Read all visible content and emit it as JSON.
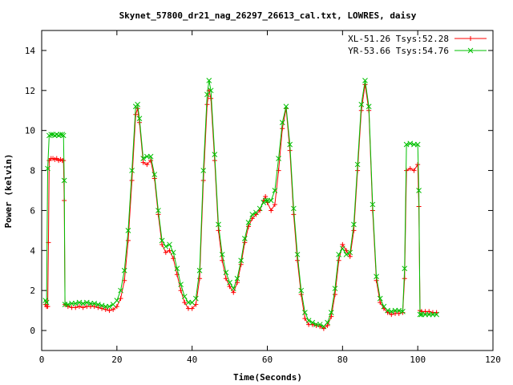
{
  "chart_data": {
    "type": "line",
    "title": "Skynet_57800_dr21_nag_26297_26613_cal.txt, LOWRES, daisy",
    "xlabel": "Time(Seconds)",
    "ylabel": "Power (kelvin)",
    "xlim": [
      0,
      120
    ],
    "ylim": [
      -1,
      15
    ],
    "xticks": [
      0,
      20,
      40,
      60,
      80,
      100,
      120
    ],
    "yticks": [
      0,
      2,
      4,
      6,
      8,
      10,
      12,
      14
    ],
    "legend_position": "top-right",
    "series": [
      {
        "name": "XL-51.26 Tsys:52.28",
        "color": "#ff0000",
        "marker": "plus",
        "points": [
          [
            1.0,
            1.3
          ],
          [
            1.3,
            1.2
          ],
          [
            1.6,
            1.2
          ],
          [
            1.8,
            4.4
          ],
          [
            2.0,
            8.5
          ],
          [
            2.5,
            8.6
          ],
          [
            3,
            8.6
          ],
          [
            3.5,
            8.55
          ],
          [
            4,
            8.6
          ],
          [
            4.5,
            8.5
          ],
          [
            5,
            8.55
          ],
          [
            5.5,
            8.5
          ],
          [
            5.8,
            8.5
          ],
          [
            6.0,
            6.5
          ],
          [
            6.2,
            1.3
          ],
          [
            7,
            1.2
          ],
          [
            8,
            1.15
          ],
          [
            9,
            1.15
          ],
          [
            10,
            1.2
          ],
          [
            11,
            1.15
          ],
          [
            12,
            1.2
          ],
          [
            13,
            1.2
          ],
          [
            14,
            1.2
          ],
          [
            15,
            1.15
          ],
          [
            16,
            1.1
          ],
          [
            17,
            1.05
          ],
          [
            18,
            1.0
          ],
          [
            19,
            1.05
          ],
          [
            20,
            1.2
          ],
          [
            21,
            1.6
          ],
          [
            22,
            2.5
          ],
          [
            23,
            4.5
          ],
          [
            24,
            7.5
          ],
          [
            25,
            10.8
          ],
          [
            25.5,
            11.1
          ],
          [
            26,
            10.4
          ],
          [
            27,
            8.4
          ],
          [
            28,
            8.3
          ],
          [
            29,
            8.5
          ],
          [
            30,
            7.6
          ],
          [
            31,
            5.8
          ],
          [
            32,
            4.3
          ],
          [
            33,
            3.9
          ],
          [
            34,
            4.0
          ],
          [
            35,
            3.6
          ],
          [
            36,
            2.8
          ],
          [
            37,
            2.0
          ],
          [
            38,
            1.4
          ],
          [
            39,
            1.1
          ],
          [
            40,
            1.1
          ],
          [
            41,
            1.3
          ],
          [
            42,
            2.6
          ],
          [
            43,
            7.5
          ],
          [
            44,
            11.3
          ],
          [
            44.5,
            12.0
          ],
          [
            45,
            11.6
          ],
          [
            46,
            8.5
          ],
          [
            47,
            5.0
          ],
          [
            48,
            3.5
          ],
          [
            49,
            2.6
          ],
          [
            50,
            2.2
          ],
          [
            51,
            1.9
          ],
          [
            52,
            2.4
          ],
          [
            53,
            3.3
          ],
          [
            54,
            4.4
          ],
          [
            55,
            5.2
          ],
          [
            56,
            5.6
          ],
          [
            57,
            5.8
          ],
          [
            58,
            6.0
          ],
          [
            59,
            6.5
          ],
          [
            59.5,
            6.7
          ],
          [
            60,
            6.4
          ],
          [
            61,
            6.0
          ],
          [
            62,
            6.3
          ],
          [
            63,
            8.0
          ],
          [
            64,
            10.1
          ],
          [
            65,
            11.1
          ],
          [
            66,
            9.0
          ],
          [
            67,
            5.8
          ],
          [
            68,
            3.5
          ],
          [
            69,
            1.8
          ],
          [
            70,
            0.6
          ],
          [
            71,
            0.3
          ],
          [
            72,
            0.3
          ],
          [
            73,
            0.25
          ],
          [
            74,
            0.2
          ],
          [
            75,
            0.1
          ],
          [
            76,
            0.25
          ],
          [
            77,
            0.7
          ],
          [
            78,
            1.8
          ],
          [
            79,
            3.5
          ],
          [
            80,
            4.3
          ],
          [
            81,
            4.0
          ],
          [
            82,
            3.7
          ],
          [
            83,
            5.0
          ],
          [
            84,
            8.0
          ],
          [
            85,
            11.0
          ],
          [
            86,
            12.3
          ],
          [
            87,
            11.0
          ],
          [
            88,
            6.0
          ],
          [
            89,
            2.5
          ],
          [
            90,
            1.4
          ],
          [
            91,
            1.1
          ],
          [
            92,
            0.9
          ],
          [
            93,
            0.8
          ],
          [
            94,
            0.85
          ],
          [
            95,
            0.85
          ],
          [
            96,
            0.9
          ],
          [
            96.5,
            2.6
          ],
          [
            97,
            8.0
          ],
          [
            98,
            8.1
          ],
          [
            99,
            8.0
          ],
          [
            100,
            8.3
          ],
          [
            100.3,
            6.2
          ],
          [
            100.6,
            1.0
          ],
          [
            101,
            0.95
          ],
          [
            102,
            0.95
          ],
          [
            103,
            0.95
          ],
          [
            104,
            0.9
          ],
          [
            105,
            0.9
          ]
        ]
      },
      {
        "name": "YR-53.66 Tsys:54.76",
        "color": "#00c000",
        "marker": "cross",
        "points": [
          [
            1.0,
            1.5
          ],
          [
            1.3,
            1.4
          ],
          [
            1.6,
            8.1
          ],
          [
            2.0,
            9.75
          ],
          [
            2.5,
            9.8
          ],
          [
            3,
            9.8
          ],
          [
            3.5,
            9.75
          ],
          [
            4,
            9.8
          ],
          [
            4.5,
            9.75
          ],
          [
            5,
            9.8
          ],
          [
            5.5,
            9.8
          ],
          [
            5.8,
            9.75
          ],
          [
            6.0,
            7.5
          ],
          [
            6.2,
            1.3
          ],
          [
            7,
            1.3
          ],
          [
            8,
            1.35
          ],
          [
            9,
            1.35
          ],
          [
            10,
            1.4
          ],
          [
            11,
            1.35
          ],
          [
            12,
            1.4
          ],
          [
            13,
            1.35
          ],
          [
            14,
            1.35
          ],
          [
            15,
            1.3
          ],
          [
            16,
            1.25
          ],
          [
            17,
            1.2
          ],
          [
            18,
            1.2
          ],
          [
            19,
            1.3
          ],
          [
            20,
            1.5
          ],
          [
            21,
            2.0
          ],
          [
            22,
            3.0
          ],
          [
            23,
            5.0
          ],
          [
            24,
            8.0
          ],
          [
            25,
            11.2
          ],
          [
            25.5,
            11.3
          ],
          [
            26,
            10.6
          ],
          [
            27,
            8.6
          ],
          [
            28,
            8.7
          ],
          [
            29,
            8.7
          ],
          [
            30,
            7.8
          ],
          [
            31,
            6.0
          ],
          [
            32,
            4.5
          ],
          [
            33,
            4.2
          ],
          [
            34,
            4.3
          ],
          [
            35,
            3.9
          ],
          [
            36,
            3.1
          ],
          [
            37,
            2.3
          ],
          [
            38,
            1.7
          ],
          [
            39,
            1.4
          ],
          [
            40,
            1.4
          ],
          [
            41,
            1.6
          ],
          [
            42,
            3.0
          ],
          [
            43,
            8.0
          ],
          [
            44,
            11.8
          ],
          [
            44.5,
            12.5
          ],
          [
            45,
            12.0
          ],
          [
            46,
            8.8
          ],
          [
            47,
            5.3
          ],
          [
            48,
            3.8
          ],
          [
            49,
            2.9
          ],
          [
            50,
            2.4
          ],
          [
            51,
            2.1
          ],
          [
            52,
            2.6
          ],
          [
            53,
            3.5
          ],
          [
            54,
            4.6
          ],
          [
            55,
            5.4
          ],
          [
            56,
            5.8
          ],
          [
            57,
            5.9
          ],
          [
            58,
            6.1
          ],
          [
            59,
            6.4
          ],
          [
            59.5,
            6.5
          ],
          [
            60,
            6.5
          ],
          [
            61,
            6.5
          ],
          [
            62,
            7.0
          ],
          [
            63,
            8.6
          ],
          [
            64,
            10.4
          ],
          [
            65,
            11.2
          ],
          [
            66,
            9.3
          ],
          [
            67,
            6.1
          ],
          [
            68,
            3.8
          ],
          [
            69,
            2.0
          ],
          [
            70,
            0.9
          ],
          [
            71,
            0.5
          ],
          [
            72,
            0.4
          ],
          [
            73,
            0.3
          ],
          [
            74,
            0.3
          ],
          [
            75,
            0.2
          ],
          [
            76,
            0.4
          ],
          [
            77,
            0.9
          ],
          [
            78,
            2.1
          ],
          [
            79,
            3.8
          ],
          [
            80,
            4.1
          ],
          [
            81,
            3.8
          ],
          [
            82,
            3.9
          ],
          [
            83,
            5.3
          ],
          [
            84,
            8.3
          ],
          [
            85,
            11.3
          ],
          [
            86,
            12.5
          ],
          [
            87,
            11.2
          ],
          [
            88,
            6.3
          ],
          [
            89,
            2.7
          ],
          [
            90,
            1.6
          ],
          [
            91,
            1.2
          ],
          [
            92,
            1.0
          ],
          [
            93,
            0.95
          ],
          [
            94,
            1.0
          ],
          [
            95,
            1.0
          ],
          [
            96,
            0.95
          ],
          [
            96.5,
            3.1
          ],
          [
            97,
            9.3
          ],
          [
            98,
            9.35
          ],
          [
            99,
            9.3
          ],
          [
            100,
            9.3
          ],
          [
            100.3,
            7.0
          ],
          [
            100.6,
            0.8
          ],
          [
            101,
            0.8
          ],
          [
            102,
            0.8
          ],
          [
            103,
            0.8
          ],
          [
            104,
            0.8
          ],
          [
            105,
            0.8
          ]
        ]
      }
    ]
  }
}
